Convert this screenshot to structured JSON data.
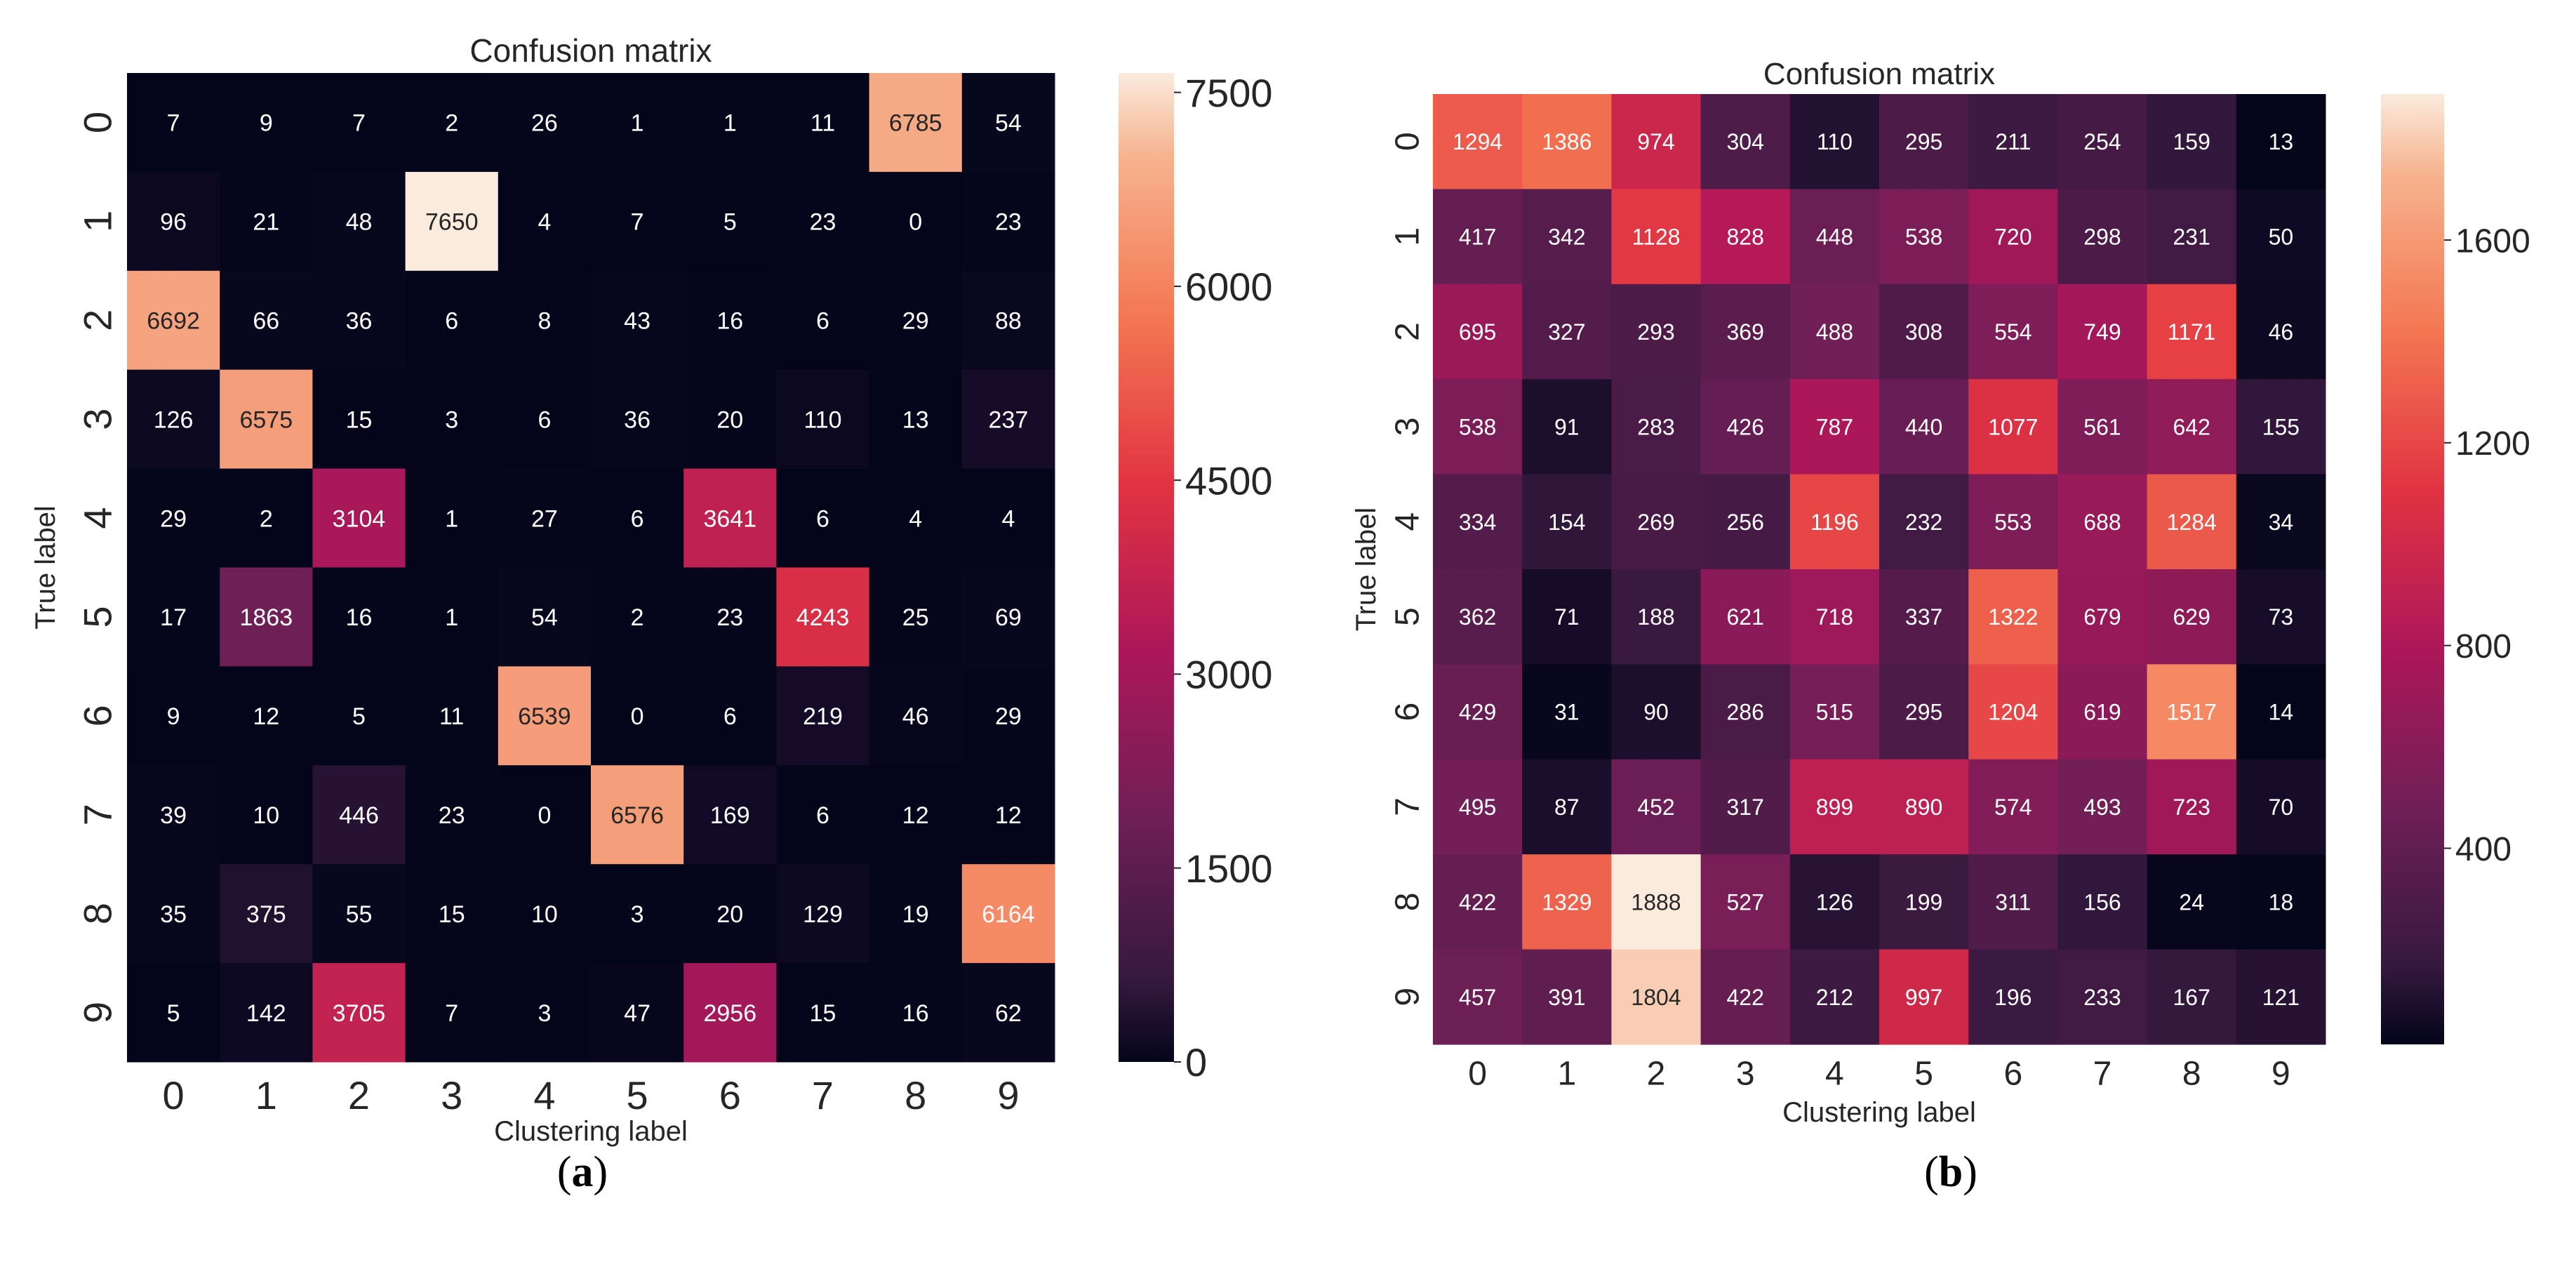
{
  "chart_data": [
    {
      "type": "heatmap",
      "id": "a",
      "title": "Confusion matrix",
      "xlabel": "Clustering label",
      "ylabel": "True label",
      "caption_letter": "a",
      "x_ticks": [
        "0",
        "1",
        "2",
        "3",
        "4",
        "5",
        "6",
        "7",
        "8",
        "9"
      ],
      "y_ticks": [
        "0",
        "1",
        "2",
        "3",
        "4",
        "5",
        "6",
        "7",
        "8",
        "9"
      ],
      "colormap": "rocket",
      "vmin": 0,
      "vmax": 7650,
      "colorbar_ticks": [
        0,
        1500,
        3000,
        4500,
        6000,
        7500
      ],
      "matrix": [
        [
          7,
          9,
          7,
          2,
          26,
          1,
          1,
          11,
          6785,
          54
        ],
        [
          96,
          21,
          48,
          7650,
          4,
          7,
          5,
          23,
          0,
          23
        ],
        [
          6692,
          66,
          36,
          6,
          8,
          43,
          16,
          6,
          29,
          88
        ],
        [
          126,
          6575,
          15,
          3,
          6,
          36,
          20,
          110,
          13,
          237
        ],
        [
          29,
          2,
          3104,
          1,
          27,
          6,
          3641,
          6,
          4,
          4
        ],
        [
          17,
          1863,
          16,
          1,
          54,
          2,
          23,
          4243,
          25,
          69
        ],
        [
          9,
          12,
          5,
          11,
          6539,
          0,
          6,
          219,
          46,
          29
        ],
        [
          39,
          10,
          446,
          23,
          0,
          6576,
          169,
          6,
          12,
          12
        ],
        [
          35,
          375,
          55,
          15,
          10,
          3,
          20,
          129,
          19,
          6164
        ],
        [
          5,
          142,
          3705,
          7,
          3,
          47,
          2956,
          15,
          16,
          62
        ]
      ]
    },
    {
      "type": "heatmap",
      "id": "b",
      "title": "Confusion matrix",
      "xlabel": "Clustering label",
      "ylabel": "True label",
      "caption_letter": "b",
      "x_ticks": [
        "0",
        "1",
        "2",
        "3",
        "4",
        "5",
        "6",
        "7",
        "8",
        "9"
      ],
      "y_ticks": [
        "0",
        "1",
        "2",
        "3",
        "4",
        "5",
        "6",
        "7",
        "8",
        "9"
      ],
      "colormap": "rocket",
      "vmin": 13,
      "vmax": 1888,
      "colorbar_ticks": [
        400,
        800,
        1200,
        1600
      ],
      "matrix": [
        [
          1294,
          1386,
          974,
          304,
          110,
          295,
          211,
          254,
          159,
          13
        ],
        [
          417,
          342,
          1128,
          828,
          448,
          538,
          720,
          298,
          231,
          50
        ],
        [
          695,
          327,
          293,
          369,
          488,
          308,
          554,
          749,
          1171,
          46
        ],
        [
          538,
          91,
          283,
          426,
          787,
          440,
          1077,
          561,
          642,
          155
        ],
        [
          334,
          154,
          269,
          256,
          1196,
          232,
          553,
          688,
          1284,
          34
        ],
        [
          362,
          71,
          188,
          621,
          718,
          337,
          1322,
          679,
          629,
          73
        ],
        [
          429,
          31,
          90,
          286,
          515,
          295,
          1204,
          619,
          1517,
          14
        ],
        [
          495,
          87,
          452,
          317,
          899,
          890,
          574,
          493,
          723,
          70
        ],
        [
          422,
          1329,
          1888,
          527,
          126,
          199,
          311,
          156,
          24,
          18
        ],
        [
          457,
          391,
          1804,
          422,
          212,
          997,
          196,
          233,
          167,
          121
        ]
      ]
    }
  ],
  "colors": {
    "rocket_stops": [
      "#03051a",
      "#35193e",
      "#701f57",
      "#ad1759",
      "#e13342",
      "#f37651",
      "#f6b48f",
      "#faebdd"
    ]
  }
}
